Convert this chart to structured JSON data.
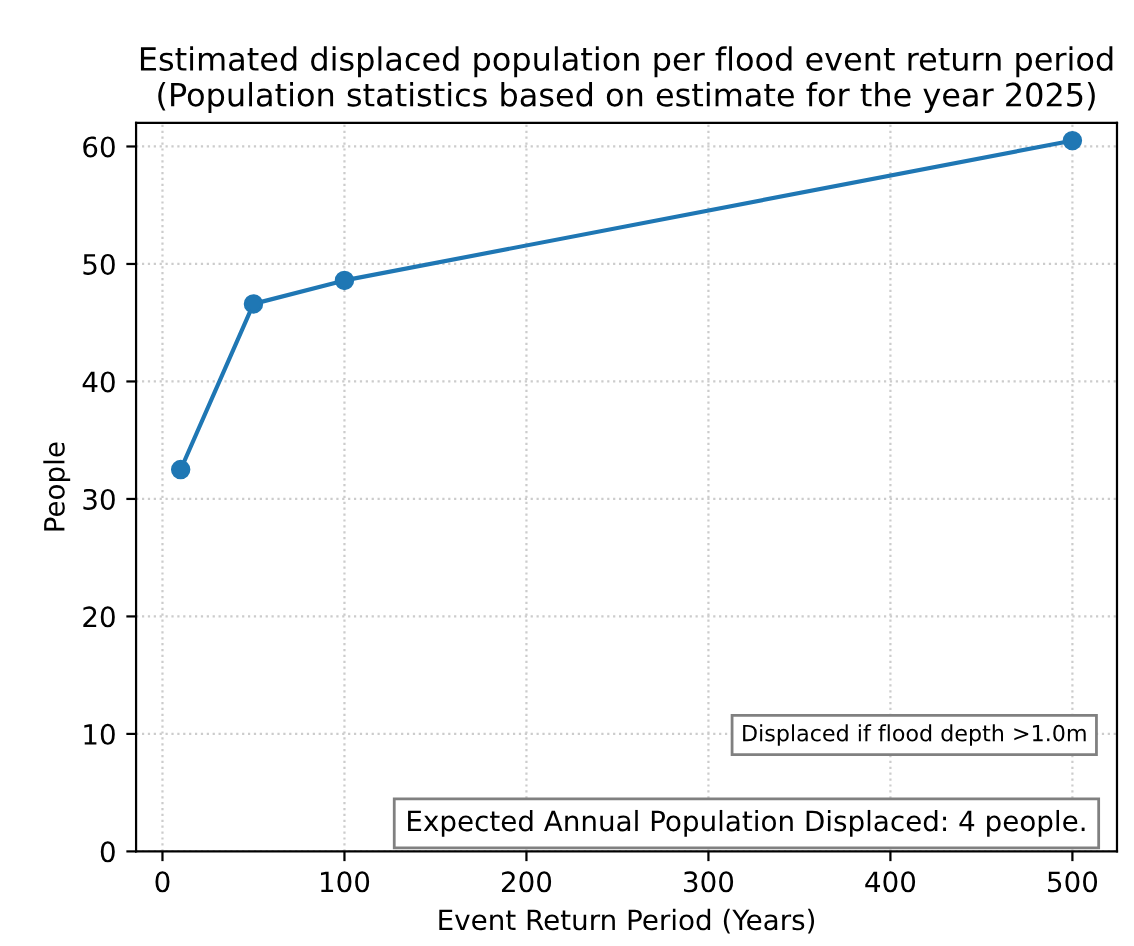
{
  "chart_data": {
    "type": "line",
    "title": "Estimated displaced population per flood event return period\n(Population statistics based on estimate for the year 2025)",
    "xlabel": "Event Return Period (Years)",
    "ylabel": "People",
    "x": [
      10,
      50,
      100,
      500
    ],
    "series": [
      {
        "color": "#1f77b4",
        "values": [
          32.5,
          46.6,
          48.6,
          60.5
        ]
      }
    ],
    "marker": "circle",
    "line_style": "solid",
    "xlim": [
      -14.5,
      524.5
    ],
    "xticks": [
      0,
      100,
      200,
      300,
      400,
      500
    ],
    "ylim": [
      0,
      62
    ],
    "yticks": [
      0,
      10,
      20,
      30,
      40,
      50,
      60
    ],
    "grid": true,
    "annotations": [
      "Displaced if flood depth >1.0m",
      "Expected Annual Population Displaced: 4 people."
    ]
  }
}
